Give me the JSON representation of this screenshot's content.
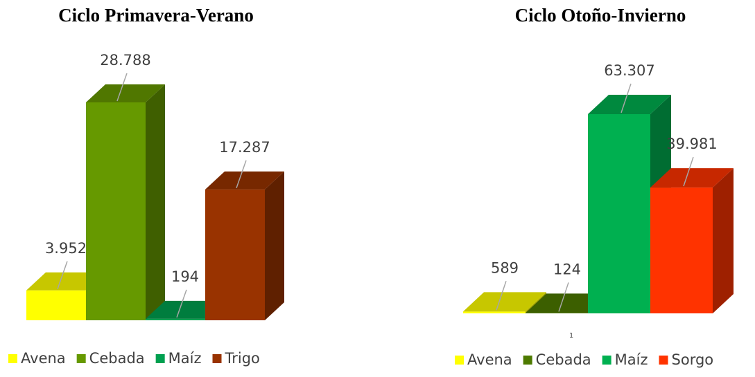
{
  "chart_data": [
    {
      "type": "bar",
      "title": "Ciclo Primavera-Verano",
      "categories": [
        "Avena",
        "Cebada",
        "Maíz",
        "Trigo"
      ],
      "values": [
        3952,
        28788,
        194,
        17287
      ],
      "value_labels": [
        "3.952",
        "28.788",
        "194",
        "17.287"
      ],
      "colors": [
        "#ffff00",
        "#669900",
        "#00a050",
        "#993300"
      ],
      "legend": "bottom"
    },
    {
      "type": "bar",
      "title": "Ciclo Otoño-Invierno",
      "categories": [
        "Avena",
        "Cebada",
        "Maíz",
        "Sorgo"
      ],
      "values": [
        589,
        124,
        63307,
        39981
      ],
      "value_labels": [
        "589",
        "124",
        "63.307",
        "39.981"
      ],
      "colors": [
        "#ffff00",
        "#4d7a00",
        "#00b050",
        "#ff3300"
      ],
      "legend": "bottom",
      "footnote": "1"
    }
  ]
}
